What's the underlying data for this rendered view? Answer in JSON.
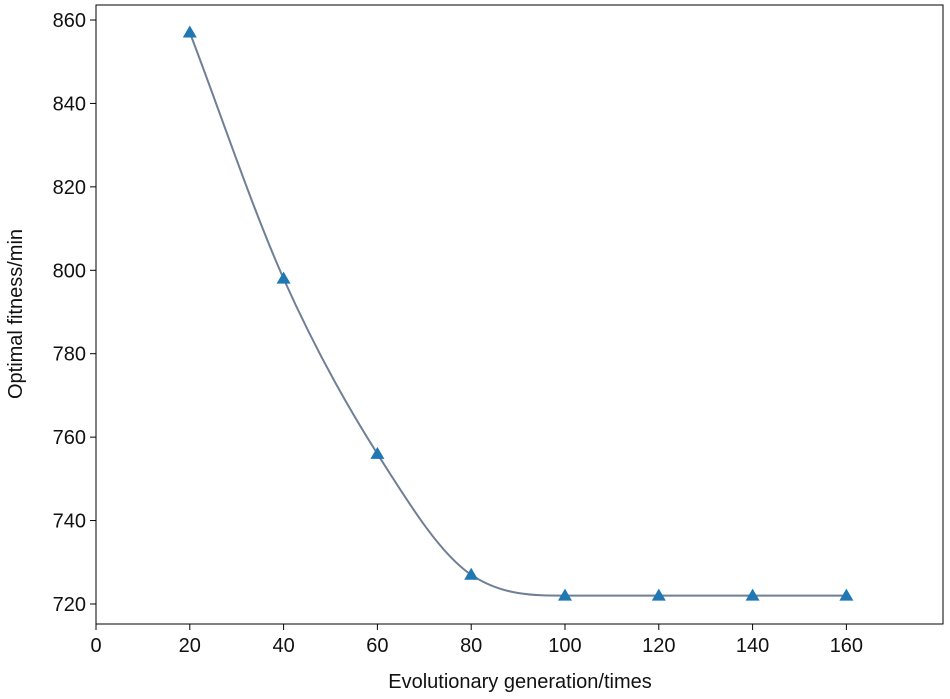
{
  "chart_data": {
    "type": "line",
    "xlabel": "Evolutionary generation/times",
    "ylabel": "Optimal fitness/min",
    "x": [
      20,
      40,
      60,
      80,
      100,
      120,
      140,
      160
    ],
    "series": [
      {
        "name": "Optimal fitness",
        "line_color": "#6f7f95",
        "color": "#1f77b4",
        "values": [
          857,
          798,
          756,
          727,
          722,
          722,
          722,
          722
        ]
      }
    ],
    "xlim": [
      0,
      180.6
    ],
    "ylim": [
      715.2,
      863.6
    ],
    "xticks": [
      0,
      20,
      40,
      60,
      80,
      100,
      120,
      140,
      160
    ],
    "yticks": [
      720,
      740,
      760,
      780,
      800,
      820,
      840,
      860
    ],
    "marker": "triangle",
    "smooth": true,
    "grid": false,
    "legend": false
  }
}
